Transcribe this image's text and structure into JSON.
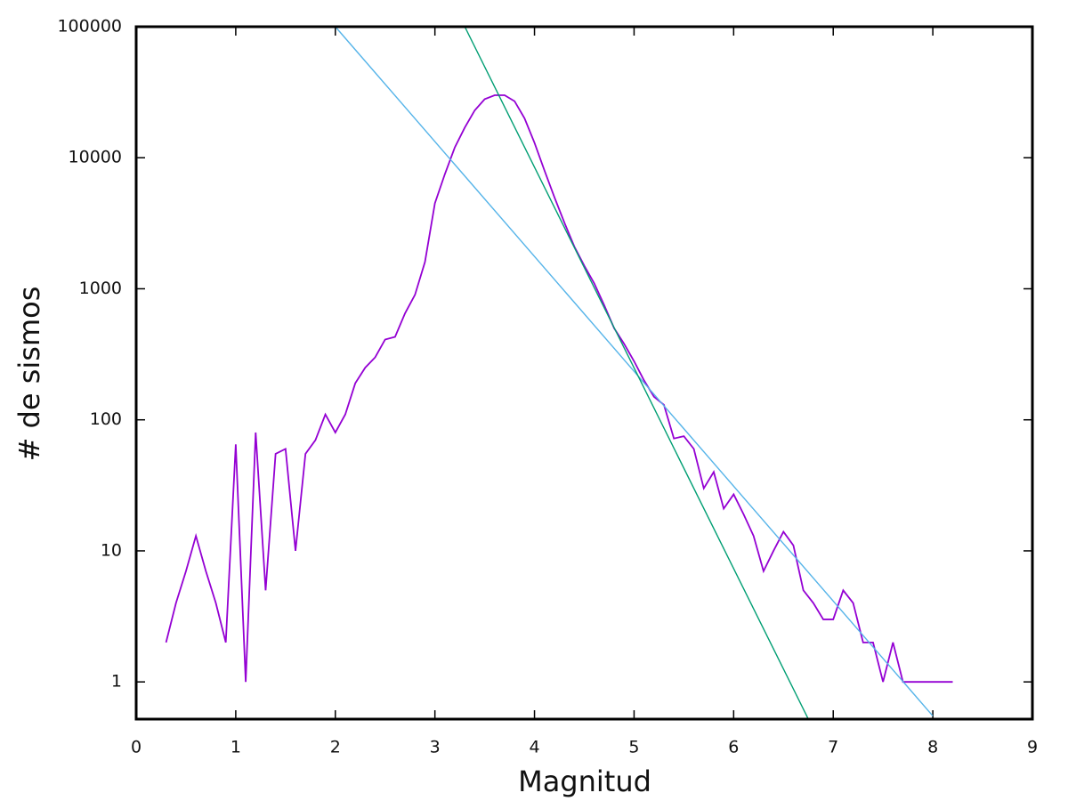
{
  "chart_data": {
    "type": "line",
    "xlabel": "Magnitud",
    "ylabel": "# de sismos",
    "log_y": true,
    "xlim": [
      0,
      9
    ],
    "ylim": [
      0.52,
      100000
    ],
    "xticks": [
      0,
      1,
      2,
      3,
      4,
      5,
      6,
      7,
      8,
      9
    ],
    "yticks": [
      1,
      10,
      100,
      1000,
      10000,
      100000
    ],
    "series": [
      {
        "color": "#9400d3",
        "x": [
          0.3,
          0.4,
          0.5,
          0.6,
          0.7,
          0.8,
          0.9,
          1.0,
          1.1,
          1.2,
          1.3,
          1.4,
          1.5,
          1.6,
          1.7,
          1.8,
          1.9,
          2.0,
          2.1,
          2.2,
          2.3,
          2.4,
          2.5,
          2.6,
          2.7,
          2.8,
          2.9,
          3.0,
          3.1,
          3.2,
          3.3,
          3.4,
          3.5,
          3.6,
          3.7,
          3.8,
          3.9,
          4.0,
          4.1,
          4.2,
          4.3,
          4.4,
          4.5,
          4.6,
          4.7,
          4.8,
          4.9,
          5.0,
          5.1,
          5.2,
          5.3,
          5.4,
          5.5,
          5.6,
          5.7,
          5.8,
          5.9,
          6.0,
          6.1,
          6.2,
          6.3,
          6.4,
          6.5,
          6.6,
          6.7,
          6.8,
          6.9,
          7.0,
          7.1,
          7.2,
          7.3,
          7.4,
          7.5,
          7.6,
          7.7,
          7.8,
          7.9,
          8.0,
          8.1,
          8.2
        ],
        "values": [
          2,
          4,
          7,
          13,
          7,
          4,
          2,
          65,
          1,
          80,
          5,
          55,
          60,
          10,
          55,
          70,
          110,
          80,
          110,
          190,
          250,
          300,
          410,
          430,
          650,
          900,
          1600,
          4500,
          7500,
          12000,
          17000,
          23000,
          28000,
          30000,
          30000,
          27000,
          20000,
          13000,
          8000,
          5000,
          3200,
          2100,
          1500,
          1100,
          750,
          500,
          380,
          280,
          200,
          150,
          130,
          72,
          75,
          60,
          30,
          40,
          21,
          27,
          19,
          13,
          7,
          10,
          14,
          11,
          5,
          4,
          3,
          3,
          5,
          4,
          2,
          2,
          1,
          2,
          1,
          1,
          1,
          1,
          1,
          1
        ]
      },
      {
        "color": "#56b4e9",
        "x": [
          2.0,
          8.0
        ],
        "values": [
          100000,
          0.55
        ]
      },
      {
        "color": "#009e73",
        "x": [
          3.3,
          6.75
        ],
        "values": [
          100000,
          0.52
        ]
      }
    ]
  }
}
